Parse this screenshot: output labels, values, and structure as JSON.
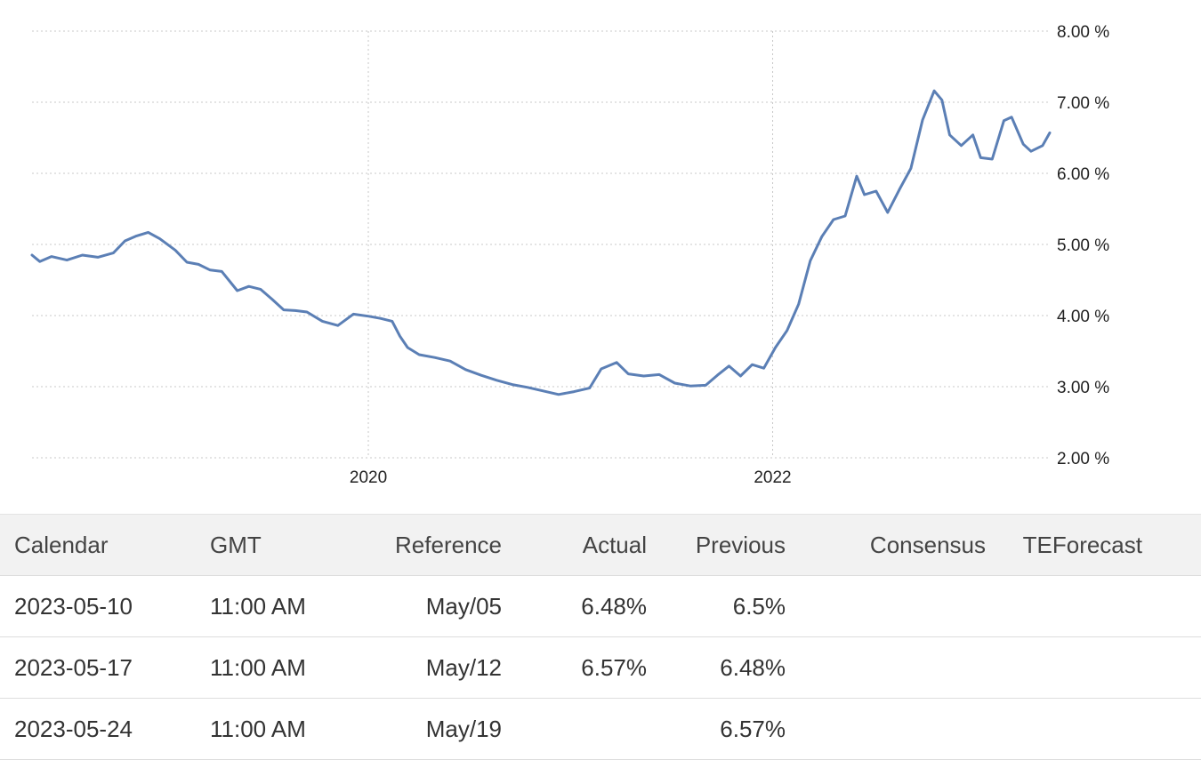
{
  "chart_data": {
    "type": "line",
    "x_ticks": [
      "2020",
      "2022"
    ],
    "y_ticks": [
      "2.00 %",
      "3.00 %",
      "4.00 %",
      "5.00 %",
      "6.00 %",
      "7.00 %",
      "8.00 %"
    ],
    "ylim": [
      2.0,
      8.0
    ],
    "xlim": [
      "2018-05-03",
      "2023-05-17"
    ],
    "grid": true,
    "line_color": "#5b7fb5",
    "series": [
      {
        "x": [
          "2018-05-03",
          "2018-05-17",
          "2018-06-07",
          "2018-07-05",
          "2018-08-02",
          "2018-08-30",
          "2018-09-27",
          "2018-10-18",
          "2018-11-08",
          "2018-11-29",
          "2018-12-20",
          "2019-01-17",
          "2019-02-07",
          "2019-02-28",
          "2019-03-21",
          "2019-04-11",
          "2019-05-09",
          "2019-05-30",
          "2019-06-20",
          "2019-07-11",
          "2019-08-01",
          "2019-08-22",
          "2019-09-12",
          "2019-10-10",
          "2019-11-07",
          "2019-12-05",
          "2020-01-02",
          "2020-01-23",
          "2020-02-13",
          "2020-02-27",
          "2020-03-12",
          "2020-04-02",
          "2020-04-30",
          "2020-05-28",
          "2020-06-25",
          "2020-07-23",
          "2020-08-20",
          "2020-09-17",
          "2020-10-15",
          "2020-11-12",
          "2020-12-10",
          "2021-01-07",
          "2021-02-04",
          "2021-02-25",
          "2021-03-25",
          "2021-04-15",
          "2021-05-13",
          "2021-06-10",
          "2021-07-08",
          "2021-08-05",
          "2021-09-02",
          "2021-09-23",
          "2021-10-14",
          "2021-11-04",
          "2021-11-25",
          "2021-12-16",
          "2022-01-06",
          "2022-01-27",
          "2022-02-17",
          "2022-03-10",
          "2022-03-31",
          "2022-04-21",
          "2022-05-12",
          "2022-06-02",
          "2022-06-16",
          "2022-07-07",
          "2022-07-28",
          "2022-08-18",
          "2022-09-08",
          "2022-09-29",
          "2022-10-20",
          "2022-11-03",
          "2022-11-17",
          "2022-12-08",
          "2022-12-29",
          "2023-01-12",
          "2023-02-02",
          "2023-02-23",
          "2023-03-09",
          "2023-03-30",
          "2023-04-13",
          "2023-05-04",
          "2023-05-17"
        ],
        "y": [
          4.85,
          4.76,
          4.83,
          4.78,
          4.85,
          4.82,
          4.88,
          5.05,
          5.12,
          5.17,
          5.08,
          4.92,
          4.75,
          4.72,
          4.64,
          4.62,
          4.35,
          4.41,
          4.37,
          4.23,
          4.08,
          4.07,
          4.05,
          3.92,
          3.86,
          4.02,
          3.99,
          3.96,
          3.92,
          3.71,
          3.55,
          3.45,
          3.41,
          3.36,
          3.24,
          3.16,
          3.09,
          3.03,
          2.99,
          2.94,
          2.89,
          2.93,
          2.98,
          3.25,
          3.34,
          3.18,
          3.15,
          3.17,
          3.05,
          3.01,
          3.02,
          3.16,
          3.29,
          3.15,
          3.31,
          3.26,
          3.55,
          3.79,
          4.16,
          4.77,
          5.11,
          5.35,
          5.4,
          5.96,
          5.7,
          5.75,
          5.45,
          5.77,
          6.07,
          6.75,
          7.16,
          7.03,
          6.54,
          6.39,
          6.54,
          6.22,
          6.2,
          6.74,
          6.79,
          6.41,
          6.31,
          6.39,
          6.57
        ]
      }
    ]
  },
  "table": {
    "headers": [
      "Calendar",
      "GMT",
      "Reference",
      "Actual",
      "Previous",
      "Consensus",
      "TEForecast"
    ],
    "rows": [
      [
        "2023-05-10",
        "11:00 AM",
        "May/05",
        "6.48%",
        "6.5%",
        "",
        ""
      ],
      [
        "2023-05-17",
        "11:00 AM",
        "May/12",
        "6.57%",
        "6.48%",
        "",
        ""
      ],
      [
        "2023-05-24",
        "11:00 AM",
        "May/19",
        "",
        "6.57%",
        "",
        ""
      ]
    ]
  }
}
